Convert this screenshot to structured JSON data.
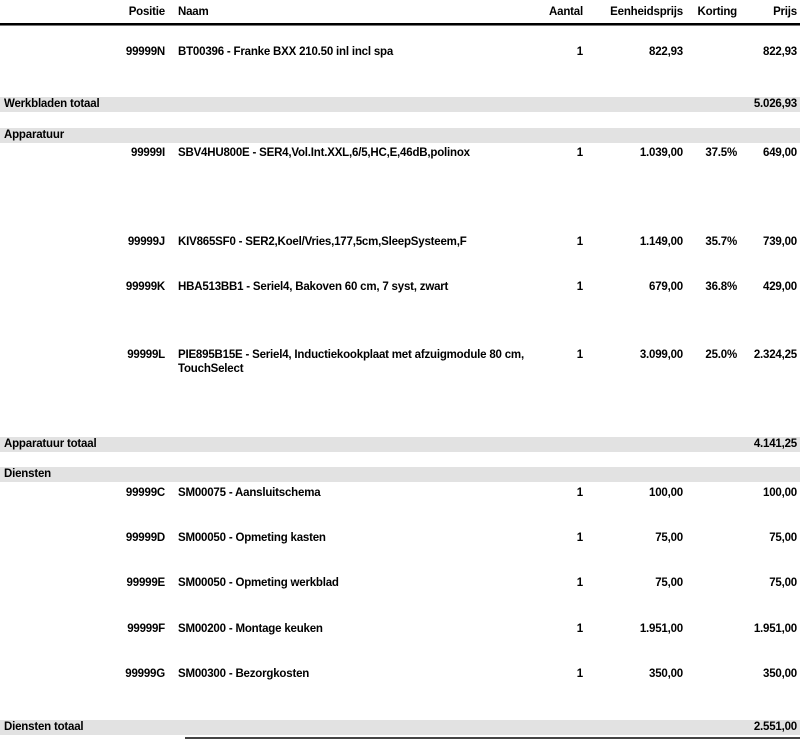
{
  "header": {
    "positie": "Positie",
    "naam": "Naam",
    "aantal": "Aantal",
    "eenheidsprijs": "Eenheidsprijs",
    "korting": "Korting",
    "prijs": "Prijs"
  },
  "rows": [
    {
      "type": "item",
      "positie": "99999N",
      "naam": "BT00396 - Franke BXX 210.50 inl incl spa",
      "aantal": "1",
      "eenheidsprijs": "822,93",
      "korting": "",
      "prijs": "822,93"
    },
    {
      "type": "total",
      "label": "Werkbladen totaal",
      "prijs": "5.026,93"
    },
    {
      "type": "section",
      "label": "Apparatuur"
    },
    {
      "type": "item",
      "positie": "99999I",
      "naam": "SBV4HU800E - SER4,Vol.Int.XXL,6/5,HC,E,46dB,polinox",
      "aantal": "1",
      "eenheidsprijs": "1.039,00",
      "korting": "37.5%",
      "prijs": "649,00"
    },
    {
      "type": "item",
      "positie": "99999J",
      "naam": "KIV865SF0 - SER2,Koel/Vries,177,5cm,SleepSysteem,F",
      "aantal": "1",
      "eenheidsprijs": "1.149,00",
      "korting": "35.7%",
      "prijs": "739,00"
    },
    {
      "type": "item",
      "positie": "99999K",
      "naam": "HBA513BB1 - Seriel4, Bakoven 60 cm, 7 syst, zwart",
      "aantal": "1",
      "eenheidsprijs": "679,00",
      "korting": "36.8%",
      "prijs": "429,00"
    },
    {
      "type": "item",
      "positie": "99999L",
      "naam": "PIE895B15E - Seriel4, Inductiekookplaat met afzuigmodule 80 cm, TouchSelect",
      "aantal": "1",
      "eenheidsprijs": "3.099,00",
      "korting": "25.0%",
      "prijs": "2.324,25"
    },
    {
      "type": "total",
      "label": "Apparatuur totaal",
      "prijs": "4.141,25"
    },
    {
      "type": "section",
      "label": "Diensten"
    },
    {
      "type": "item",
      "positie": "99999C",
      "naam": "SM00075 - Aansluitschema",
      "aantal": "1",
      "eenheidsprijs": "100,00",
      "korting": "",
      "prijs": "100,00"
    },
    {
      "type": "item",
      "positie": "99999D",
      "naam": "SM00050 - Opmeting kasten",
      "aantal": "1",
      "eenheidsprijs": "75,00",
      "korting": "",
      "prijs": "75,00"
    },
    {
      "type": "item",
      "positie": "99999E",
      "naam": "SM00050 - Opmeting werkblad",
      "aantal": "1",
      "eenheidsprijs": "75,00",
      "korting": "",
      "prijs": "75,00"
    },
    {
      "type": "item",
      "positie": "99999F",
      "naam": "SM00200 - Montage keuken",
      "aantal": "1",
      "eenheidsprijs": "1.951,00",
      "korting": "",
      "prijs": "1.951,00"
    },
    {
      "type": "item",
      "positie": "99999G",
      "naam": "SM00300 - Bezorgkosten",
      "aantal": "1",
      "eenheidsprijs": "350,00",
      "korting": "",
      "prijs": "350,00"
    },
    {
      "type": "total",
      "label": "Diensten totaal",
      "prijs": "2.551,00"
    }
  ]
}
